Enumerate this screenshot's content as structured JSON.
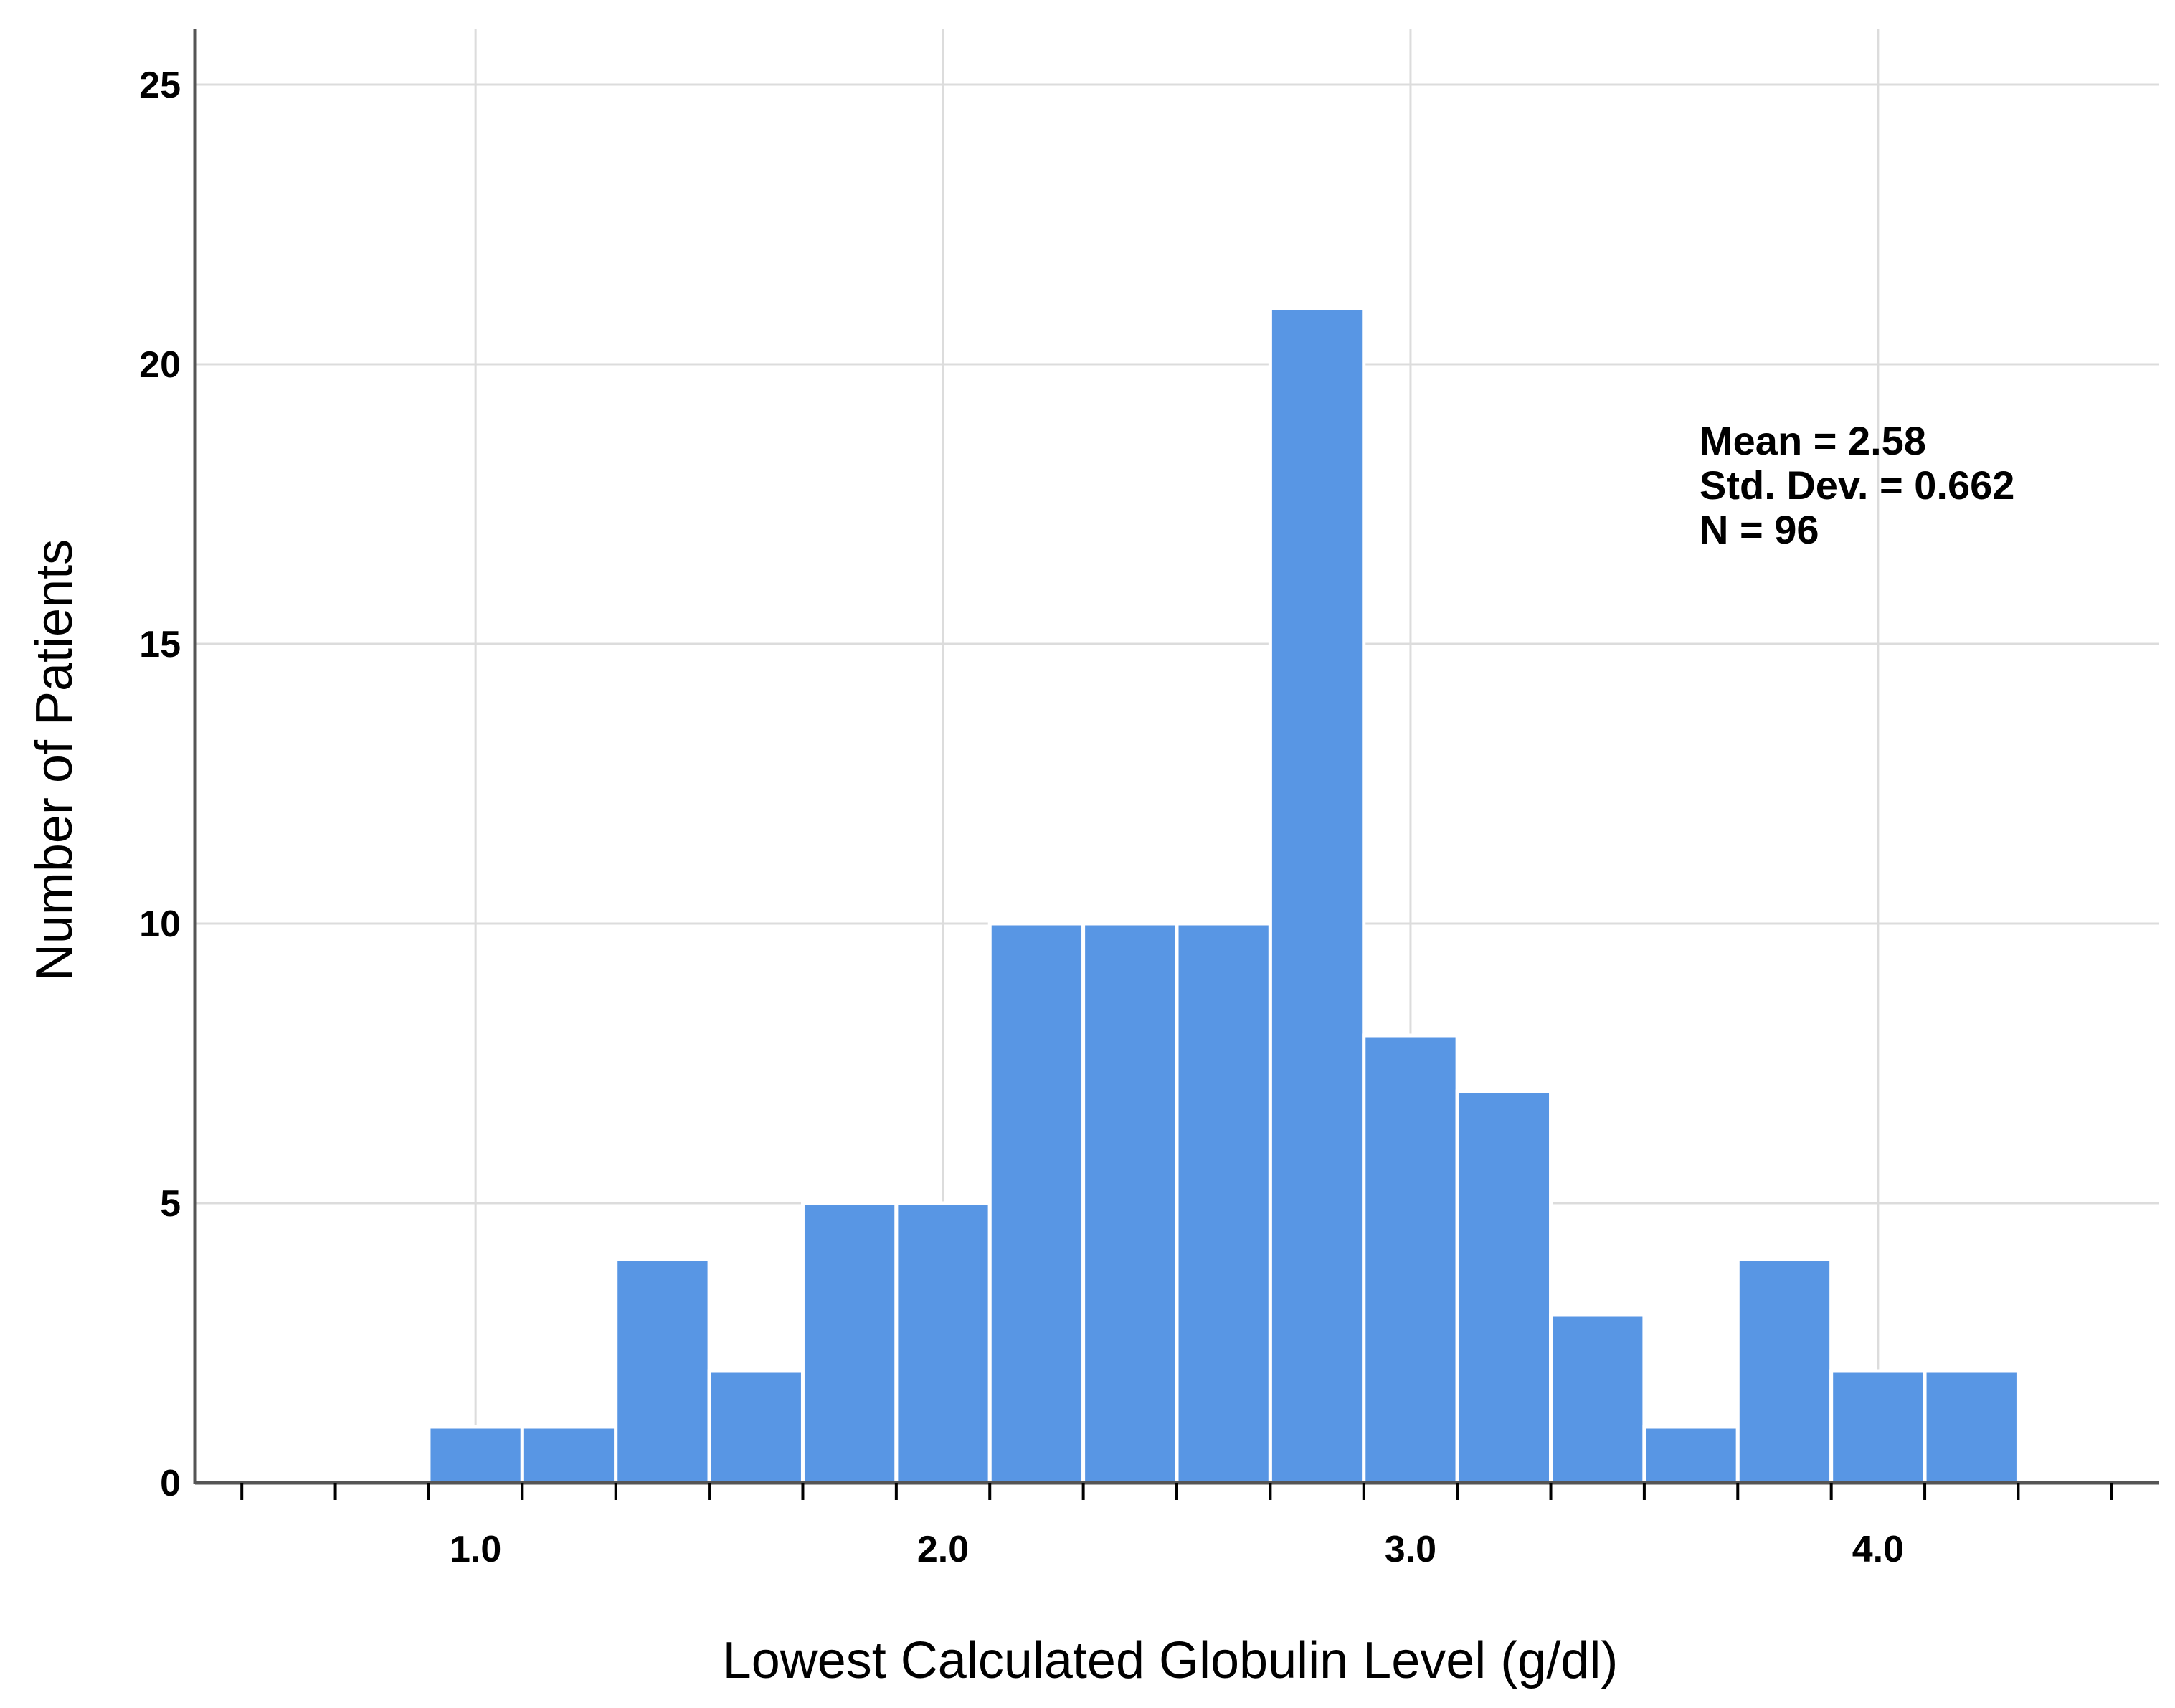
{
  "chart_data": {
    "type": "bar",
    "subtype": "histogram",
    "xlabel": "Lowest Calculated Globulin Level (g/dl)",
    "ylabel": "Number of Patients",
    "xlim": [
      0.4,
      4.6
    ],
    "ylim": [
      0,
      26
    ],
    "x_ticks": [
      "1.0",
      "2.0",
      "3.0",
      "4.0"
    ],
    "x_tick_values": [
      1.0,
      2.0,
      3.0,
      4.0
    ],
    "y_ticks": [
      "0",
      "5",
      "10",
      "15",
      "20",
      "25"
    ],
    "y_tick_values": [
      0,
      5,
      10,
      15,
      20,
      25
    ],
    "bin_width": 0.2,
    "bins": [
      {
        "start": 0.9,
        "end": 1.1,
        "count": 1
      },
      {
        "start": 1.1,
        "end": 1.3,
        "count": 1
      },
      {
        "start": 1.3,
        "end": 1.5,
        "count": 4
      },
      {
        "start": 1.5,
        "end": 1.7,
        "count": 2
      },
      {
        "start": 1.7,
        "end": 1.9,
        "count": 5
      },
      {
        "start": 1.9,
        "end": 2.1,
        "count": 5
      },
      {
        "start": 2.1,
        "end": 2.3,
        "count": 10
      },
      {
        "start": 2.3,
        "end": 2.5,
        "count": 10
      },
      {
        "start": 2.5,
        "end": 2.7,
        "count": 10
      },
      {
        "start": 2.7,
        "end": 2.9,
        "count": 21
      },
      {
        "start": 2.9,
        "end": 3.1,
        "count": 8
      },
      {
        "start": 3.1,
        "end": 3.3,
        "count": 7
      },
      {
        "start": 3.3,
        "end": 3.5,
        "count": 3
      },
      {
        "start": 3.5,
        "end": 3.7,
        "count": 1
      },
      {
        "start": 3.7,
        "end": 3.9,
        "count": 4
      },
      {
        "start": 3.9,
        "end": 4.1,
        "count": 2
      },
      {
        "start": 4.1,
        "end": 4.3,
        "count": 2
      }
    ],
    "stats": [
      "Mean = 2.58",
      "Std. Dev. = 0.662",
      "N = 96"
    ],
    "grid": true,
    "legend": "none",
    "colors": {
      "bar_fill": "#5896E4",
      "bar_edge": "#ffffff",
      "grid": "#DCDCDC",
      "axis": "#555555"
    }
  }
}
